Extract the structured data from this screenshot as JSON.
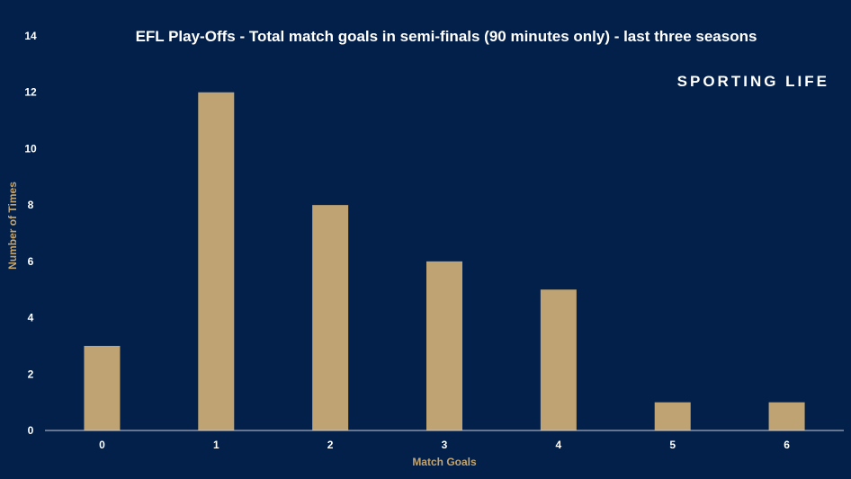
{
  "chart_data": {
    "type": "bar",
    "title": "EFL Play-Offs - Total match goals in semi-finals (90 minutes only) - last three seasons",
    "brand": "SPORTING LIFE",
    "xlabel": "Match Goals",
    "ylabel": "Number of Times",
    "categories": [
      "0",
      "1",
      "2",
      "3",
      "4",
      "5",
      "6"
    ],
    "values": [
      3,
      12,
      8,
      6,
      5,
      1,
      1
    ],
    "ylim": [
      0,
      14
    ],
    "yticks": [
      "0",
      "2",
      "4",
      "6",
      "8",
      "10",
      "12",
      "14"
    ],
    "grid": false,
    "legend": "none",
    "colors": {
      "background": "#03204a",
      "bar": "#bfa372",
      "axis_label": "#c2a571",
      "text": "#ffffff",
      "axis_line": "#c9ccd6"
    }
  }
}
